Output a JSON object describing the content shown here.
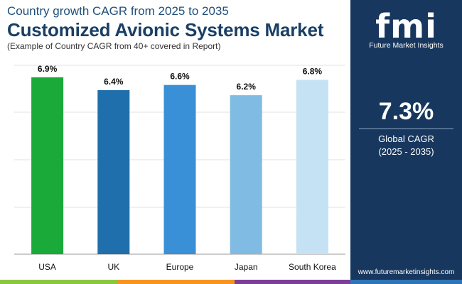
{
  "header": {
    "title_top": "Country growth CAGR from 2025 to 2035",
    "title_main": "Customized Avionic Systems Market",
    "subtitle": "(Example of Country CAGR from 40+ covered in Report)"
  },
  "brand": {
    "logo_text": "fmi",
    "name": "Future Market Insights",
    "website": "www.futuremarketinsights.com",
    "panel_color": "#17375e"
  },
  "summary": {
    "value": "7.3%",
    "label": "Global CAGR",
    "period": "(2025 - 2035)"
  },
  "chart_data": {
    "type": "bar",
    "categories": [
      "USA",
      "UK",
      "Europe",
      "Japan",
      "South Korea"
    ],
    "values": [
      6.9,
      6.4,
      6.6,
      6.2,
      6.8
    ],
    "data_labels": [
      "6.9%",
      "6.4%",
      "6.6%",
      "6.2%",
      "6.8%"
    ],
    "colors": [
      "#1aaa3a",
      "#1f6fad",
      "#3a90d6",
      "#7fbbe3",
      "#c5e2f4"
    ],
    "title": "",
    "xlabel": "",
    "ylabel": "",
    "ylim": [
      0,
      7.2
    ],
    "grid": true,
    "legend": "none"
  },
  "footer_colors": [
    "#8cc63f",
    "#f7941d",
    "#7b3f98",
    "#2e75b6"
  ]
}
